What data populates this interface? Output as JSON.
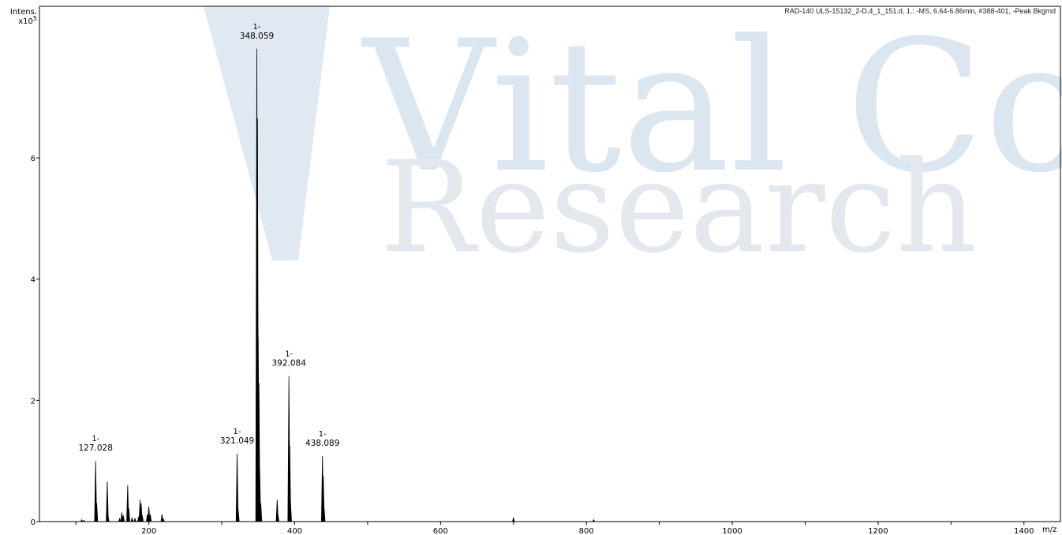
{
  "page": {
    "spectrum_info": "RAD-140 ULS-15132_2-D,4_1_151.d, 1.: -MS, 6.64-6.86min, #388-401, -Peak Bkgrnd",
    "watermark": {
      "line1": "Vital Core",
      "line2": "Research",
      "color": "#dbe5f0"
    }
  },
  "chart_data": {
    "type": "bar",
    "ylabel": "Intens.",
    "y_scale": "x10",
    "y_exponent": "5",
    "xlabel": "m/z",
    "xlim": [
      50,
      1450
    ],
    "ylim": [
      0,
      8.5
    ],
    "x_ticks": [
      200,
      400,
      600,
      800,
      1000,
      1200,
      1400
    ],
    "y_ticks": [
      0,
      2,
      4,
      6
    ],
    "grid": false,
    "line_color": "#000000",
    "peaks": [
      {
        "mz": 108,
        "y": 0.03
      },
      {
        "mz": 111,
        "y": 0.02
      },
      {
        "mz": 127.028,
        "y": 1.0,
        "label": "1-",
        "value_label": "127.028"
      },
      {
        "mz": 128.5,
        "y": 0.3
      },
      {
        "mz": 143,
        "y": 0.66
      },
      {
        "mz": 144,
        "y": 0.1
      },
      {
        "mz": 160,
        "y": 0.05
      },
      {
        "mz": 163,
        "y": 0.15
      },
      {
        "mz": 165,
        "y": 0.1
      },
      {
        "mz": 171,
        "y": 0.6
      },
      {
        "mz": 172.5,
        "y": 0.22
      },
      {
        "mz": 177,
        "y": 0.06
      },
      {
        "mz": 181,
        "y": 0.05
      },
      {
        "mz": 186,
        "y": 0.08
      },
      {
        "mz": 188,
        "y": 0.36
      },
      {
        "mz": 189.5,
        "y": 0.3
      },
      {
        "mz": 191,
        "y": 0.1
      },
      {
        "mz": 198,
        "y": 0.12
      },
      {
        "mz": 200,
        "y": 0.25
      },
      {
        "mz": 202,
        "y": 0.12
      },
      {
        "mz": 218,
        "y": 0.12
      },
      {
        "mz": 220,
        "y": 0.04
      },
      {
        "mz": 321.049,
        "y": 1.12,
        "label": "1-",
        "value_label": "321.049"
      },
      {
        "mz": 322.5,
        "y": 0.2
      },
      {
        "mz": 348.059,
        "y": 7.8,
        "label": "1-",
        "value_label": "348.059"
      },
      {
        "mz": 349.0,
        "y": 6.65
      },
      {
        "mz": 350.0,
        "y": 3.05
      },
      {
        "mz": 351.0,
        "y": 2.28
      },
      {
        "mz": 352.0,
        "y": 0.85
      },
      {
        "mz": 353.5,
        "y": 0.3
      },
      {
        "mz": 376,
        "y": 0.36
      },
      {
        "mz": 377,
        "y": 0.12
      },
      {
        "mz": 392.084,
        "y": 2.4,
        "label": "1-",
        "value_label": "392.084"
      },
      {
        "mz": 393.2,
        "y": 1.25
      },
      {
        "mz": 394.3,
        "y": 0.3
      },
      {
        "mz": 438.089,
        "y": 1.08,
        "label": "1-",
        "value_label": "438.089"
      },
      {
        "mz": 439.2,
        "y": 0.75
      },
      {
        "mz": 440.3,
        "y": 0.22
      },
      {
        "mz": 700,
        "y": 0.06
      },
      {
        "mz": 810,
        "y": 0.03
      }
    ]
  }
}
